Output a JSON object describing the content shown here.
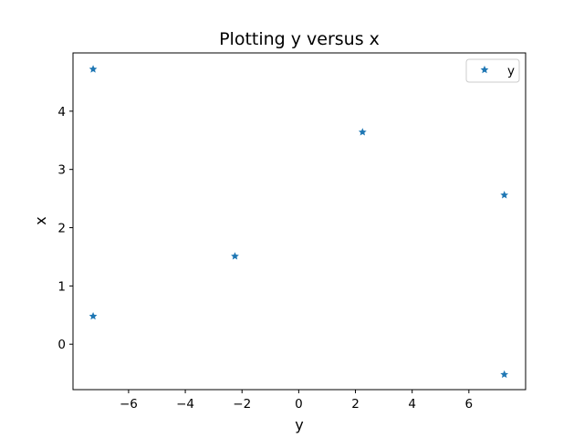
{
  "chart_data": {
    "type": "scatter",
    "title": "Plotting y versus x",
    "xlabel": "y",
    "ylabel": "x",
    "xlim": [
      -7.96,
      8.0
    ],
    "ylim": [
      -0.78,
      5.0
    ],
    "xticks": [
      -6,
      -4,
      -2,
      0,
      2,
      4,
      6
    ],
    "yticks": [
      0,
      1,
      2,
      3,
      4
    ],
    "xtick_labels": [
      "−6",
      "−4",
      "−2",
      "0",
      "2",
      "4",
      "6"
    ],
    "ytick_labels": [
      "0",
      "1",
      "2",
      "3",
      "4"
    ],
    "legend": {
      "placement": "top-right",
      "entries": [
        "y"
      ]
    },
    "grid": false,
    "series": [
      {
        "name": "y",
        "marker": "star",
        "color": "#1f77b4",
        "points": [
          {
            "x": -7.25,
            "y": 4.72
          },
          {
            "x": -7.25,
            "y": 0.48
          },
          {
            "x": -2.25,
            "y": 1.51
          },
          {
            "x": 2.25,
            "y": 3.64
          },
          {
            "x": 7.25,
            "y": 2.56
          },
          {
            "x": 7.25,
            "y": -0.52
          }
        ]
      }
    ]
  }
}
